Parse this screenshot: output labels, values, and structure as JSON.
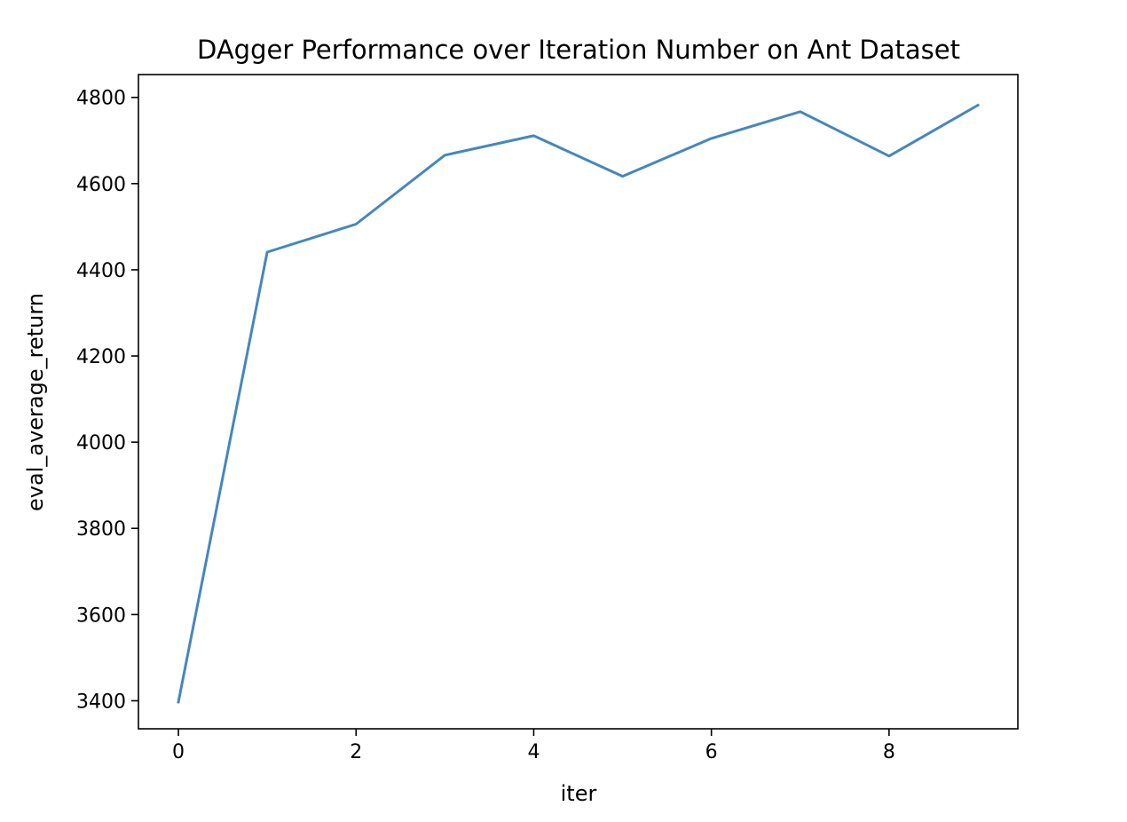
{
  "chart_data": {
    "type": "line",
    "title": "DAgger Performance over Iteration Number on Ant Dataset",
    "xlabel": "iter",
    "ylabel": "eval_average_return",
    "xlim": [
      -0.45,
      9.45
    ],
    "ylim": [
      3335,
      4853
    ],
    "xticks": [
      0,
      2,
      4,
      6,
      8
    ],
    "yticks": [
      3400,
      3600,
      3800,
      4000,
      4200,
      4400,
      4600,
      4800
    ],
    "grid": false,
    "line_color": "#4587bd",
    "series": [
      {
        "x": [
          0,
          1,
          2,
          3,
          4,
          5,
          6,
          7,
          8,
          9
        ],
        "values": [
          3397,
          4441,
          4506,
          4666,
          4711,
          4617,
          4705,
          4767,
          4664,
          4782
        ]
      }
    ]
  }
}
